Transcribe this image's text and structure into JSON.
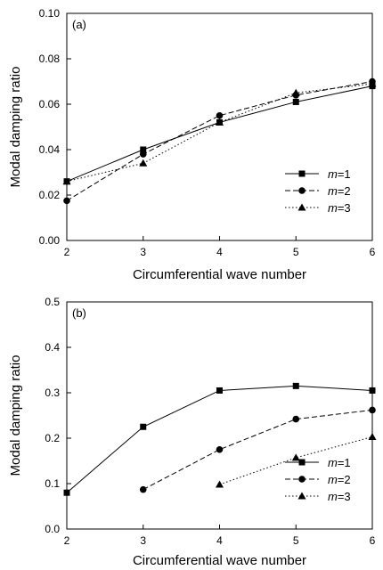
{
  "chart_data": [
    {
      "type": "line",
      "panel_label": "(a)",
      "xlabel": "Circumferential wave number",
      "ylabel": "Modal damping ratio",
      "xlim": [
        2,
        6
      ],
      "ylim": [
        0,
        0.1
      ],
      "x_ticks": [
        "2",
        "3",
        "4",
        "5",
        "6"
      ],
      "y_ticks": [
        "0.00",
        "0.02",
        "0.04",
        "0.06",
        "0.08",
        "0.10"
      ],
      "grid": false,
      "legend_position": "lower-right",
      "series": [
        {
          "name": "m=1",
          "name_italic": "m",
          "name_rest": "=1",
          "marker": "square",
          "dash": "solid",
          "x": [
            2,
            3,
            4,
            5,
            6
          ],
          "y": [
            0.026,
            0.04,
            0.052,
            0.061,
            0.068
          ]
        },
        {
          "name": "m=2",
          "name_italic": "m",
          "name_rest": "=2",
          "marker": "circle",
          "dash": "dashed",
          "x": [
            2,
            3,
            4,
            5,
            6
          ],
          "y": [
            0.0175,
            0.038,
            0.055,
            0.064,
            0.07
          ]
        },
        {
          "name": "m=3",
          "name_italic": "m",
          "name_rest": "=3",
          "marker": "triangle",
          "dash": "dotted",
          "x": [
            2,
            3,
            4,
            5,
            6
          ],
          "y": [
            0.026,
            0.034,
            0.052,
            0.065,
            0.069
          ]
        }
      ]
    },
    {
      "type": "line",
      "panel_label": "(b)",
      "xlabel": "Circumferential wave number",
      "ylabel": "Modal damping ratio",
      "xlim": [
        2,
        6
      ],
      "ylim": [
        0,
        0.5
      ],
      "x_ticks": [
        "2",
        "3",
        "4",
        "5",
        "6"
      ],
      "y_ticks": [
        "0.0",
        "0.1",
        "0.2",
        "0.3",
        "0.4",
        "0.5"
      ],
      "grid": false,
      "legend_position": "lower-right",
      "series": [
        {
          "name": "m=1",
          "name_italic": "m",
          "name_rest": "=1",
          "marker": "square",
          "dash": "solid",
          "x": [
            2,
            3,
            4,
            5,
            6
          ],
          "y": [
            0.08,
            0.225,
            0.305,
            0.315,
            0.305
          ]
        },
        {
          "name": "m=2",
          "name_italic": "m",
          "name_rest": "=2",
          "marker": "circle",
          "dash": "dashed",
          "x": [
            3,
            4,
            5,
            6
          ],
          "y": [
            0.087,
            0.175,
            0.242,
            0.262
          ]
        },
        {
          "name": "m=3",
          "name_italic": "m",
          "name_rest": "=3",
          "marker": "triangle",
          "dash": "dotted",
          "x": [
            4,
            5,
            6
          ],
          "y": [
            0.098,
            0.157,
            0.203
          ]
        }
      ]
    }
  ]
}
